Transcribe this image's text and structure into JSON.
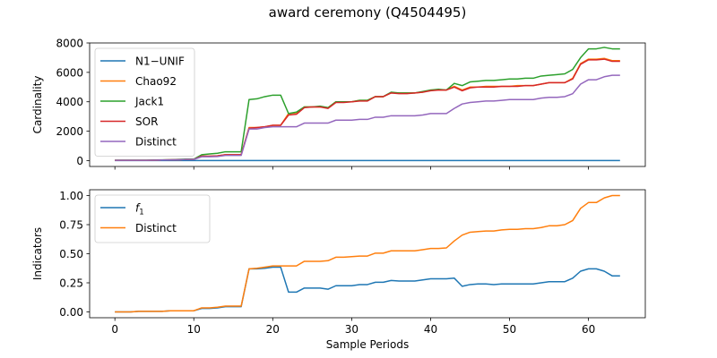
{
  "figure": {
    "suptitle": "award ceremony (Q4504495)"
  },
  "chart_data": [
    {
      "type": "line",
      "title": "",
      "xlabel": "",
      "ylabel": "Cardinality",
      "xlim": [
        -3.2,
        67.2
      ],
      "ylim": [
        -400,
        8000
      ],
      "xticks": [
        0,
        10,
        20,
        30,
        40,
        50,
        60
      ],
      "xtick_labels": [
        "",
        "",
        "",
        "",
        "",
        "",
        ""
      ],
      "yticks": [
        0,
        2000,
        4000,
        6000,
        8000
      ],
      "ytick_labels": [
        "0",
        "2000",
        "4000",
        "6000",
        "8000"
      ],
      "grid": false,
      "legend": "upper-left",
      "series": [
        {
          "name": "N1−UNIF",
          "color": "#1f77b4",
          "values": [
            0,
            0,
            0,
            0,
            0,
            0,
            0,
            0,
            0,
            0,
            0,
            0,
            0,
            0,
            0,
            0,
            0,
            0,
            0,
            0,
            0,
            0,
            0,
            0,
            0,
            0,
            0,
            0,
            0,
            0,
            0,
            0,
            0,
            0,
            0,
            0,
            0,
            0,
            0,
            0,
            0,
            0,
            0,
            0,
            0,
            0,
            0,
            0,
            0,
            0,
            0,
            0,
            0,
            0,
            0,
            0,
            0,
            0,
            0,
            0,
            0,
            0,
            0,
            0,
            0
          ]
        },
        {
          "name": "Chao92",
          "color": "#ff7f0e",
          "values": [
            20,
            20,
            20,
            20,
            20,
            30,
            40,
            50,
            60,
            80,
            80,
            300,
            300,
            320,
            400,
            400,
            400,
            2250,
            2250,
            2300,
            2400,
            2400,
            3200,
            3250,
            3650,
            3650,
            3650,
            3600,
            4000,
            4000,
            4000,
            4100,
            4100,
            4350,
            4350,
            4600,
            4600,
            4600,
            4600,
            4650,
            4800,
            4800,
            4800,
            5050,
            4800,
            5000,
            5000,
            5050,
            5050,
            5050,
            5050,
            5100,
            5100,
            5100,
            5200,
            5300,
            5300,
            5300,
            5600,
            6600,
            6900,
            6900,
            6950,
            6800,
            6800
          ]
        },
        {
          "name": "Jack1",
          "color": "#2ca02c",
          "values": [
            30,
            30,
            30,
            30,
            30,
            40,
            50,
            60,
            80,
            100,
            100,
            400,
            450,
            500,
            600,
            600,
            600,
            4150,
            4200,
            4350,
            4450,
            4450,
            3200,
            3300,
            3650,
            3650,
            3700,
            3600,
            4000,
            4000,
            4000,
            4100,
            4100,
            4350,
            4350,
            4650,
            4600,
            4600,
            4600,
            4700,
            4800,
            4850,
            4800,
            5250,
            5100,
            5350,
            5400,
            5450,
            5450,
            5500,
            5550,
            5550,
            5600,
            5600,
            5750,
            5800,
            5850,
            5900,
            6200,
            7000,
            7600,
            7600,
            7700,
            7600,
            7600
          ]
        },
        {
          "name": "SOR",
          "color": "#d62728",
          "values": [
            20,
            20,
            20,
            20,
            20,
            30,
            40,
            50,
            60,
            80,
            80,
            300,
            300,
            320,
            400,
            400,
            400,
            2200,
            2250,
            2300,
            2400,
            2400,
            3100,
            3150,
            3600,
            3650,
            3650,
            3550,
            3950,
            3950,
            4000,
            4050,
            4050,
            4350,
            4350,
            4600,
            4550,
            4550,
            4600,
            4650,
            4750,
            4800,
            4800,
            5000,
            4750,
            4950,
            5000,
            5000,
            5000,
            5050,
            5050,
            5050,
            5100,
            5100,
            5200,
            5300,
            5300,
            5300,
            5550,
            6550,
            6850,
            6850,
            6900,
            6750,
            6750
          ]
        },
        {
          "name": "Distinct",
          "color": "#9467bd",
          "values": [
            20,
            20,
            20,
            20,
            20,
            30,
            40,
            50,
            60,
            80,
            80,
            260,
            260,
            280,
            350,
            350,
            350,
            2150,
            2150,
            2250,
            2300,
            2300,
            2300,
            2300,
            2550,
            2550,
            2550,
            2550,
            2750,
            2750,
            2750,
            2800,
            2800,
            2950,
            2950,
            3050,
            3050,
            3050,
            3050,
            3100,
            3200,
            3200,
            3200,
            3550,
            3850,
            3950,
            4000,
            4050,
            4050,
            4100,
            4150,
            4150,
            4150,
            4150,
            4250,
            4300,
            4300,
            4350,
            4550,
            5200,
            5500,
            5500,
            5700,
            5800,
            5800
          ]
        }
      ]
    },
    {
      "type": "line",
      "title": "",
      "xlabel": "Sample Periods",
      "ylabel": "Indicators",
      "xlim": [
        -3.2,
        67.2
      ],
      "ylim": [
        -0.05,
        1.05
      ],
      "xticks": [
        0,
        10,
        20,
        30,
        40,
        50,
        60
      ],
      "xtick_labels": [
        "0",
        "10",
        "20",
        "30",
        "40",
        "50",
        "60"
      ],
      "yticks": [
        0,
        0.25,
        0.5,
        0.75,
        1.0
      ],
      "ytick_labels": [
        "0.00",
        "0.25",
        "0.50",
        "0.75",
        "1.00"
      ],
      "grid": false,
      "legend": "upper-left",
      "series": [
        {
          "name": "f",
          "name_subscript": "1",
          "color": "#1f77b4",
          "values": [
            0,
            0,
            0,
            0.005,
            0.005,
            0.005,
            0.005,
            0.01,
            0.01,
            0.01,
            0.01,
            0.03,
            0.03,
            0.035,
            0.045,
            0.045,
            0.045,
            0.37,
            0.37,
            0.375,
            0.385,
            0.385,
            0.17,
            0.17,
            0.205,
            0.205,
            0.205,
            0.195,
            0.225,
            0.225,
            0.225,
            0.235,
            0.235,
            0.255,
            0.255,
            0.27,
            0.265,
            0.265,
            0.265,
            0.275,
            0.285,
            0.285,
            0.285,
            0.29,
            0.22,
            0.235,
            0.24,
            0.24,
            0.235,
            0.24,
            0.24,
            0.24,
            0.24,
            0.24,
            0.25,
            0.26,
            0.26,
            0.26,
            0.29,
            0.35,
            0.37,
            0.37,
            0.35,
            0.31,
            0.31
          ]
        },
        {
          "name": "Distinct",
          "color": "#ff7f0e",
          "values": [
            0,
            0,
            0,
            0.005,
            0.005,
            0.005,
            0.005,
            0.01,
            0.01,
            0.01,
            0.01,
            0.035,
            0.035,
            0.04,
            0.05,
            0.05,
            0.05,
            0.37,
            0.375,
            0.385,
            0.395,
            0.395,
            0.395,
            0.395,
            0.435,
            0.435,
            0.435,
            0.44,
            0.47,
            0.47,
            0.475,
            0.48,
            0.48,
            0.505,
            0.505,
            0.525,
            0.525,
            0.525,
            0.525,
            0.535,
            0.545,
            0.545,
            0.55,
            0.61,
            0.66,
            0.685,
            0.69,
            0.695,
            0.695,
            0.705,
            0.71,
            0.71,
            0.715,
            0.715,
            0.725,
            0.74,
            0.74,
            0.75,
            0.785,
            0.89,
            0.94,
            0.94,
            0.98,
            1.0,
            1.0
          ]
        }
      ]
    }
  ]
}
